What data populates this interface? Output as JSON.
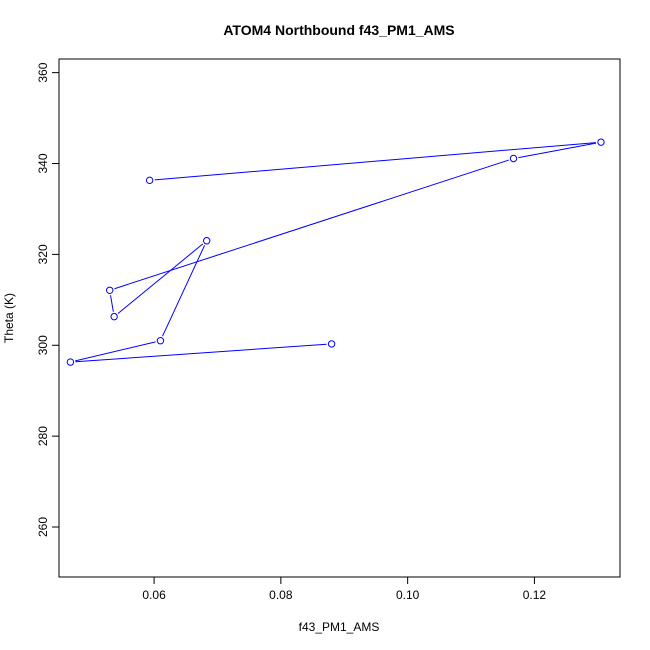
{
  "chart_data": {
    "type": "line",
    "title": "ATOM4 Northbound f43_PM1_AMS",
    "xlabel": "f43_PM1_AMS",
    "ylabel": "Theta (K)",
    "xlim": [
      0.045,
      0.1335
    ],
    "ylim": [
      249,
      363
    ],
    "x_ticks": [
      0.06,
      0.08,
      0.1,
      0.12
    ],
    "x_tick_labels": [
      "0.06",
      "0.08",
      "0.10",
      "0.12"
    ],
    "y_ticks": [
      260,
      280,
      300,
      320,
      340,
      360
    ],
    "y_tick_labels": [
      "260",
      "280",
      "300",
      "320",
      "340",
      "360"
    ],
    "grid": false,
    "series": [
      {
        "marker": "open-circle",
        "color": "#0000ff",
        "points": [
          {
            "x": 0.088,
            "y": 300.3
          },
          {
            "x": 0.0468,
            "y": 296.3
          },
          {
            "x": 0.061,
            "y": 301.0
          },
          {
            "x": 0.0683,
            "y": 323.0
          },
          {
            "x": 0.0537,
            "y": 306.3
          },
          {
            "x": 0.053,
            "y": 312.1
          },
          {
            "x": 0.1167,
            "y": 341.1
          },
          {
            "x": 0.1305,
            "y": 344.7
          },
          {
            "x": 0.0593,
            "y": 336.3
          }
        ]
      }
    ]
  }
}
